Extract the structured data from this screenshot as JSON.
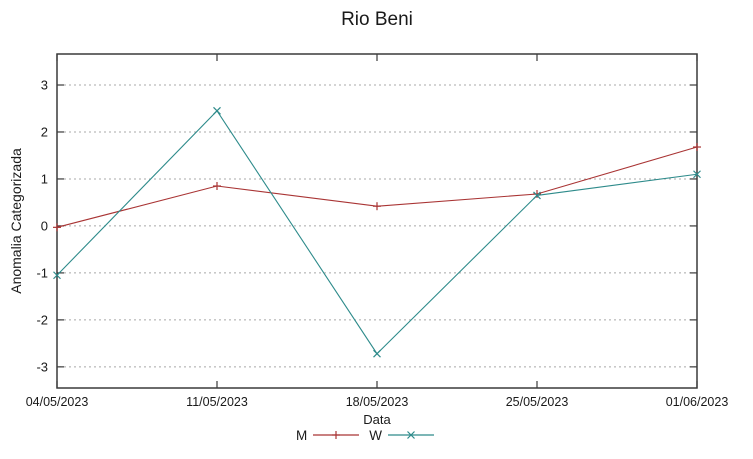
{
  "chart_data": {
    "type": "line",
    "title": "Rio Beni",
    "xlabel": "Data",
    "ylabel": "Anomalia Categorizada",
    "categories": [
      "04/05/2023",
      "11/05/2023",
      "18/05/2023",
      "25/05/2023",
      "01/06/2023"
    ],
    "series": [
      {
        "name": "M",
        "color": "#a93434",
        "marker": "plus-marker",
        "values": [
          -0.03,
          0.85,
          0.42,
          0.68,
          1.68
        ]
      },
      {
        "name": "W",
        "color": "#2e8b8b",
        "marker": "cross-marker",
        "values": [
          -1.05,
          2.45,
          -2.72,
          0.65,
          1.1
        ]
      }
    ],
    "ylim": [
      -3.45,
      3.66
    ],
    "yticks": [
      -3,
      -2,
      -1,
      0,
      1,
      2,
      3
    ],
    "grid": "horizontal-dashed",
    "legend_position": "bottom-center",
    "colors": {
      "border": "#3a3a3a",
      "grid": "#a8a8a8",
      "text": "#1a1a1a"
    }
  }
}
